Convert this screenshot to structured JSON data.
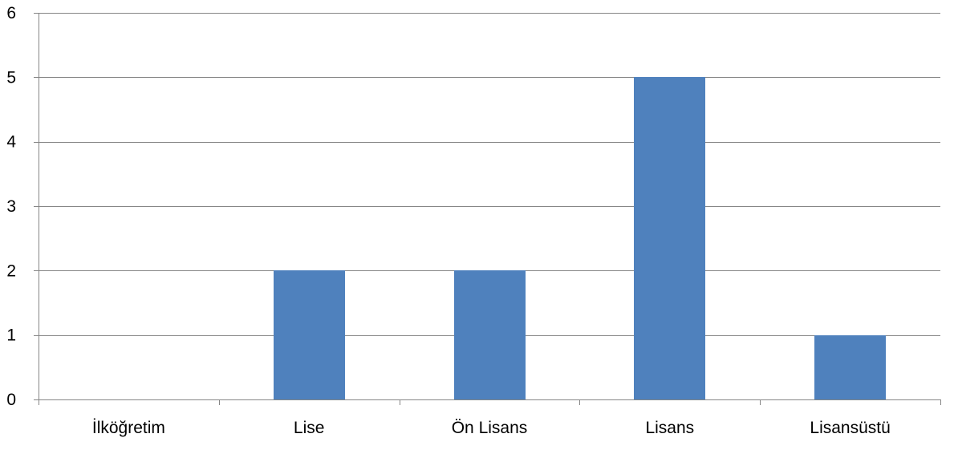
{
  "chart_data": {
    "type": "bar",
    "title": "",
    "xlabel": "",
    "ylabel": "",
    "categories": [
      "İlköğretim",
      "Lise",
      "Ön Lisans",
      "Lisans",
      "Lisansüstü"
    ],
    "values": [
      0,
      2,
      2,
      5,
      1
    ],
    "ylim": [
      0,
      6
    ],
    "yticks": [
      0,
      1,
      2,
      3,
      4,
      5,
      6
    ],
    "grid": true,
    "legend": "none",
    "colors": {
      "bar": "#4f81bd",
      "grid": "#868686",
      "text": "#000000"
    }
  }
}
